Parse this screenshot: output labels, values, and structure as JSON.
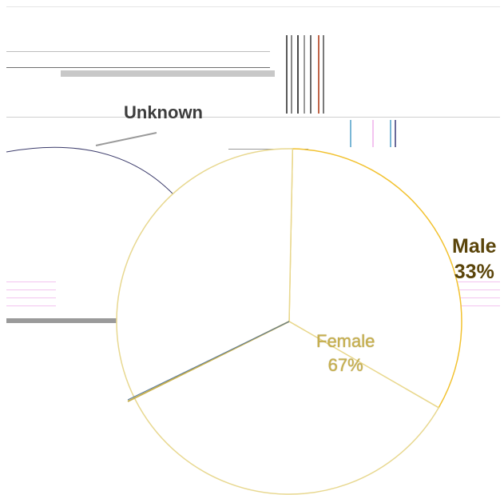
{
  "chart_data": {
    "type": "pie",
    "title": "",
    "slices": [
      {
        "label": "Male",
        "value": 33,
        "pct_label": "33%",
        "color": "#f2c230"
      },
      {
        "label": "Female",
        "value": 67,
        "pct_label": "67%",
        "color": "#ffffff"
      }
    ],
    "callout_label": "Unknown",
    "legend": false
  },
  "colors": {
    "outline": "#3b3b6b",
    "accent": "#f2c230",
    "text_dark": "#3d3d3d"
  }
}
